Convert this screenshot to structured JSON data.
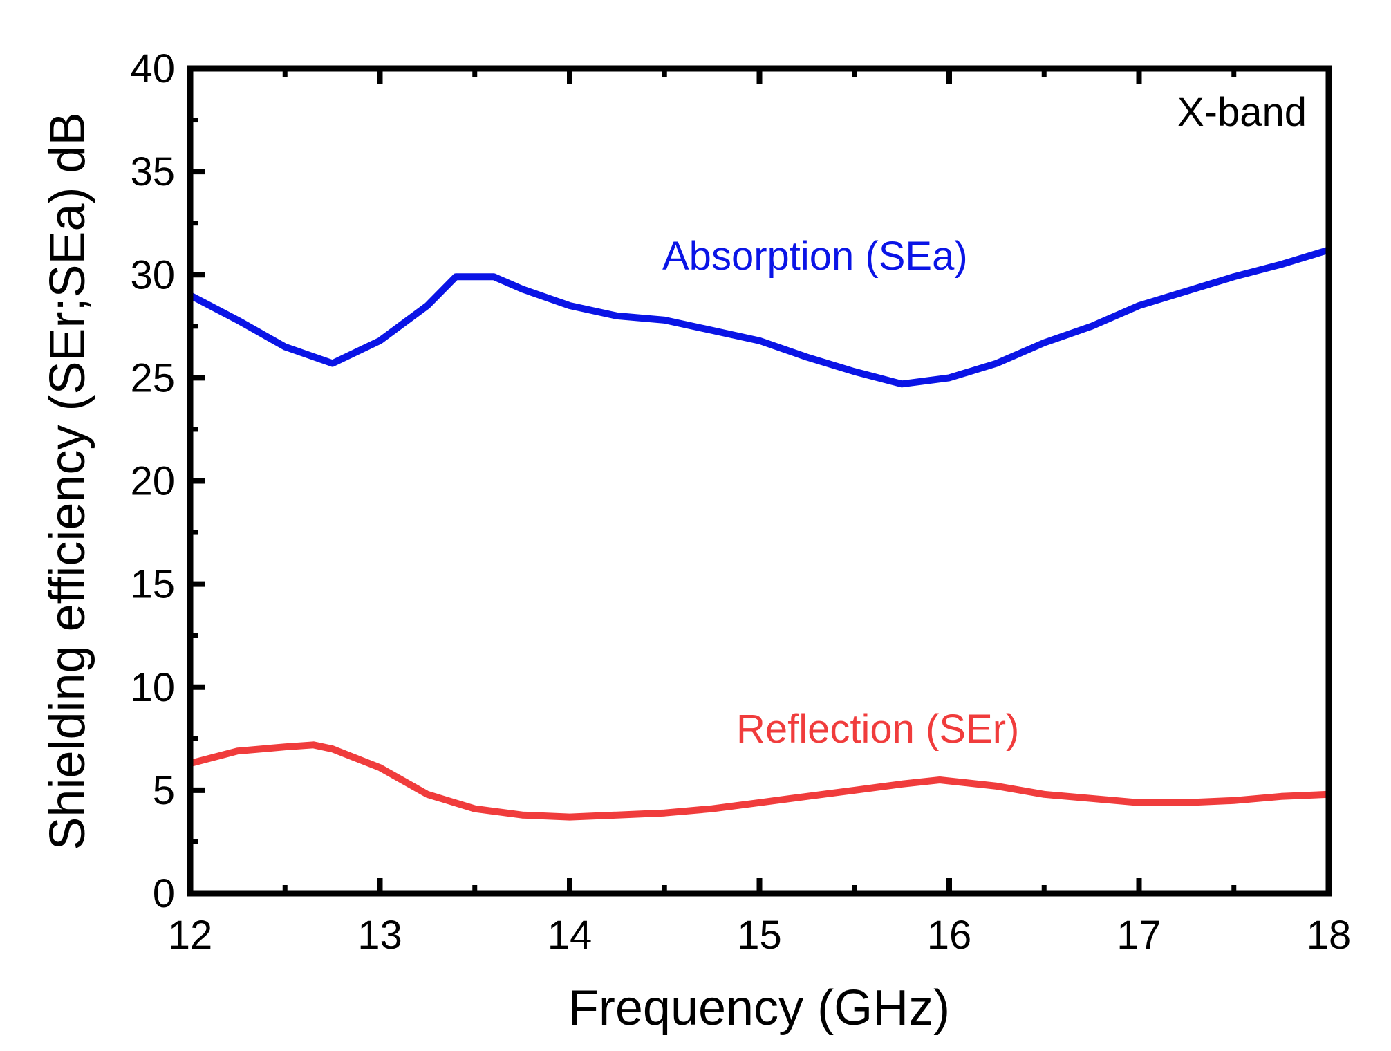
{
  "chart_data": {
    "type": "line",
    "title": "",
    "xlabel": "Frequency (GHz)",
    "ylabel": "Shielding efficiency (SEr;SEa) dB",
    "xlim": [
      12,
      18
    ],
    "ylim": [
      0,
      40
    ],
    "xticks": [
      12,
      13,
      14,
      15,
      16,
      17,
      18
    ],
    "yticks": [
      0,
      5,
      10,
      15,
      20,
      25,
      30,
      35,
      40
    ],
    "grid": false,
    "annotation": "X-band",
    "series": [
      {
        "name": "Absorption (SEa)",
        "color": "#0a14e6",
        "x": [
          12,
          12.25,
          12.5,
          12.75,
          13,
          13.25,
          13.4,
          13.6,
          13.75,
          14,
          14.25,
          14.5,
          14.75,
          15,
          15.25,
          15.5,
          15.75,
          16,
          16.25,
          16.5,
          16.75,
          17,
          17.25,
          17.5,
          17.75,
          18
        ],
        "y": [
          29,
          27.8,
          26.5,
          25.7,
          26.8,
          28.5,
          29.9,
          29.9,
          29.3,
          28.5,
          28.0,
          27.8,
          27.3,
          26.8,
          26.0,
          25.3,
          24.7,
          25.0,
          25.7,
          26.7,
          27.5,
          28.5,
          29.2,
          29.9,
          30.5,
          31.2
        ]
      },
      {
        "name": "Reflection (SEr)",
        "color": "#f03c3c",
        "x": [
          12,
          12.25,
          12.5,
          12.65,
          12.75,
          13,
          13.25,
          13.5,
          13.75,
          14,
          14.25,
          14.5,
          14.75,
          15,
          15.25,
          15.5,
          15.75,
          15.95,
          16.25,
          16.5,
          16.75,
          17,
          17.25,
          17.5,
          17.75,
          18
        ],
        "y": [
          6.3,
          6.9,
          7.1,
          7.2,
          7.0,
          6.1,
          4.8,
          4.1,
          3.8,
          3.7,
          3.8,
          3.9,
          4.1,
          4.4,
          4.7,
          5.0,
          5.3,
          5.5,
          5.2,
          4.8,
          4.6,
          4.4,
          4.4,
          4.5,
          4.7,
          4.8
        ]
      }
    ]
  }
}
